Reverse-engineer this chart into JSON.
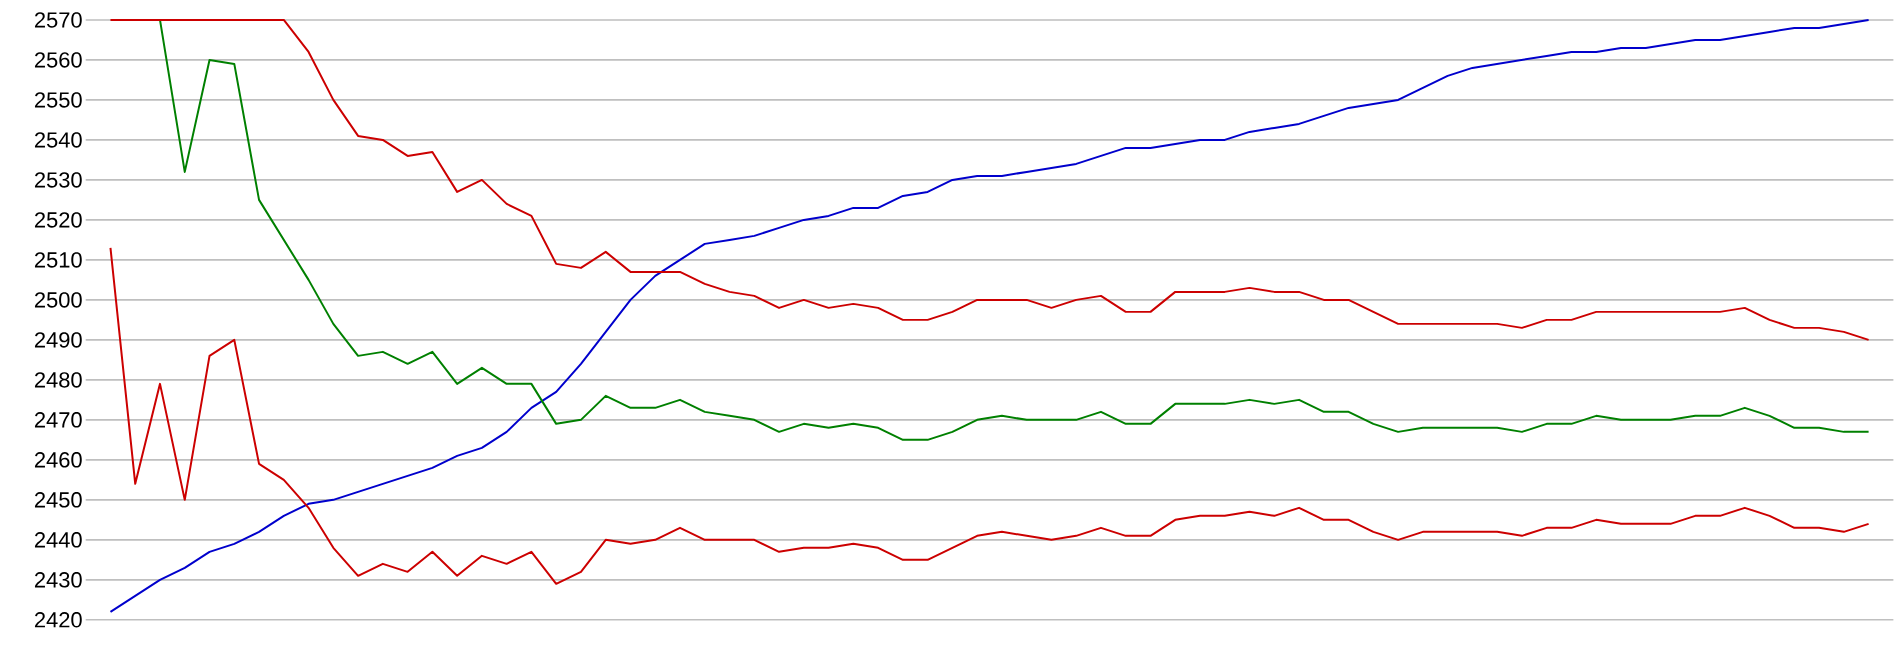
{
  "chart_data": {
    "type": "line",
    "categories": [
      null,
      null,
      null,
      null,
      null,
      null,
      null,
      null,
      null,
      null,
      null,
      null,
      null,
      null,
      null,
      null,
      null,
      null,
      null,
      null,
      null,
      null,
      null,
      null,
      null,
      null,
      null,
      null,
      null,
      null,
      null,
      null,
      null,
      null,
      null,
      null,
      null,
      null,
      null,
      null,
      null,
      null,
      null,
      null,
      null,
      null,
      null,
      null,
      null,
      null,
      null,
      null,
      null,
      null,
      null,
      null,
      null,
      null,
      null,
      null,
      null,
      null,
      null,
      null,
      null,
      null,
      null,
      null,
      null,
      null,
      null,
      null
    ],
    "series": [
      {
        "color": "#0000cc",
        "values": [
          2422,
          2426,
          2430,
          2433,
          2437,
          2439,
          2442,
          2446,
          2449,
          2450,
          2452,
          2454,
          2456,
          2458,
          2461,
          2463,
          2467,
          2473,
          2477,
          2484,
          2492,
          2500,
          2506,
          2510,
          2514,
          2515,
          2516,
          2518,
          2520,
          2521,
          2523,
          2523,
          2526,
          2527,
          2530,
          2531,
          2531,
          2532,
          2533,
          2534,
          2536,
          2538,
          2538,
          2539,
          2540,
          2540,
          2542,
          2543,
          2544,
          2546,
          2548,
          2549,
          2550,
          2553,
          2556,
          2558,
          2559,
          2560,
          2561,
          2562,
          2562,
          2563,
          2563,
          2564,
          2565,
          2565,
          2566,
          2567,
          2568,
          2568,
          2569,
          2570
        ]
      },
      {
        "color": "#008000",
        "values": [
          null,
          null,
          2570,
          2532,
          2560,
          2559,
          2525,
          2515,
          2505,
          2494,
          2486,
          2487,
          2484,
          2487,
          2479,
          2483,
          2479,
          2479,
          2469,
          2470,
          2476,
          2473,
          2473,
          2475,
          2472,
          2471,
          2470,
          2467,
          2469,
          2468,
          2469,
          2468,
          2465,
          2465,
          2467,
          2470,
          2471,
          2470,
          2470,
          2470,
          2472,
          2469,
          2469,
          2474,
          2474,
          2474,
          2475,
          2474,
          2475,
          2472,
          2472,
          2469,
          2467,
          2468,
          2468,
          2468,
          2468,
          2467,
          2469,
          2469,
          2471,
          2470,
          2470,
          2470,
          2471,
          2471,
          2473,
          2471,
          2468,
          2468,
          2467,
          2467
        ]
      },
      {
        "color": "#cc0000",
        "values": [
          2513,
          2454,
          2479,
          2450,
          2486,
          2490,
          2459,
          2455,
          2448,
          2438,
          2431,
          2434,
          2432,
          2437,
          2431,
          2436,
          2434,
          2437,
          2429,
          2432,
          2440,
          2439,
          2440,
          2443,
          2440,
          2440,
          2440,
          2437,
          2438,
          2438,
          2439,
          2438,
          2435,
          2435,
          2438,
          2441,
          2442,
          2441,
          2440,
          2441,
          2443,
          2441,
          2441,
          2445,
          2446,
          2446,
          2447,
          2446,
          2448,
          2445,
          2445,
          2442,
          2440,
          2442,
          2442,
          2442,
          2442,
          2441,
          2443,
          2443,
          2445,
          2444,
          2444,
          2444,
          2446,
          2446,
          2448,
          2446,
          2443,
          2443,
          2442,
          2444
        ]
      },
      {
        "color": "#cc0000",
        "values": [
          2570,
          2570,
          2570,
          2570,
          2570,
          2570,
          2570,
          2570,
          2562,
          2550,
          2541,
          2540,
          2536,
          2537,
          2527,
          2530,
          2524,
          2521,
          2509,
          2508,
          2512,
          2507,
          2507,
          2507,
          2504,
          2502,
          2501,
          2498,
          2500,
          2498,
          2499,
          2498,
          2495,
          2495,
          2497,
          2500,
          2500,
          2500,
          2498,
          2500,
          2501,
          2497,
          2497,
          2502,
          2502,
          2502,
          2503,
          2502,
          2502,
          2500,
          2500,
          2497,
          2494,
          2494,
          2494,
          2494,
          2494,
          2493,
          2495,
          2495,
          2497,
          2497,
          2497,
          2497,
          2497,
          2497,
          2498,
          2495,
          2493,
          2493,
          2492,
          2490
        ]
      }
    ],
    "ylim": [
      2420,
      2570
    ],
    "yticks": [
      2420,
      2430,
      2440,
      2450,
      2460,
      2470,
      2480,
      2490,
      2500,
      2510,
      2520,
      2530,
      2540,
      2550,
      2560,
      2570
    ],
    "grid": "y",
    "tick_labels": "y"
  }
}
